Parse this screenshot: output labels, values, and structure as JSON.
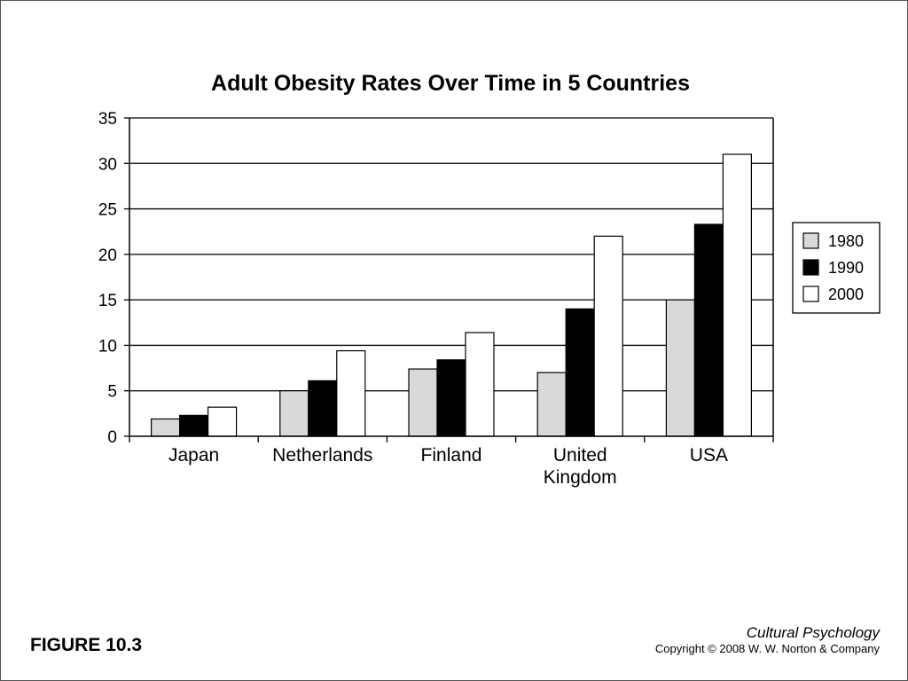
{
  "figure_label": "FIGURE 10.3",
  "book_title": "Cultural Psychology",
  "copyright": "Copyright © 2008 W. W. Norton & Company",
  "colors": {
    "series_1980": "#d9d9d9",
    "series_1990": "#000000",
    "series_2000": "#ffffff",
    "gridline": "#000000"
  },
  "chart_data": {
    "type": "bar",
    "title": "Adult Obesity Rates Over Time in 5 Countries",
    "xlabel": "",
    "ylabel": "",
    "categories": [
      [
        "Japan"
      ],
      [
        "Netherlands"
      ],
      [
        "Finland"
      ],
      [
        "United",
        "Kingdom"
      ],
      [
        "USA"
      ]
    ],
    "series": [
      {
        "name": "1980",
        "values": [
          1.9,
          5.0,
          7.4,
          7.0,
          15.0
        ]
      },
      {
        "name": "1990",
        "values": [
          2.3,
          6.1,
          8.4,
          14.0,
          23.3
        ]
      },
      {
        "name": "2000",
        "values": [
          3.2,
          9.4,
          11.4,
          22.0,
          31.0
        ]
      }
    ],
    "ylim": [
      0,
      35
    ],
    "yticks": [
      0,
      5,
      10,
      15,
      20,
      25,
      30,
      35
    ],
    "grid": true,
    "legend_position": "right"
  }
}
